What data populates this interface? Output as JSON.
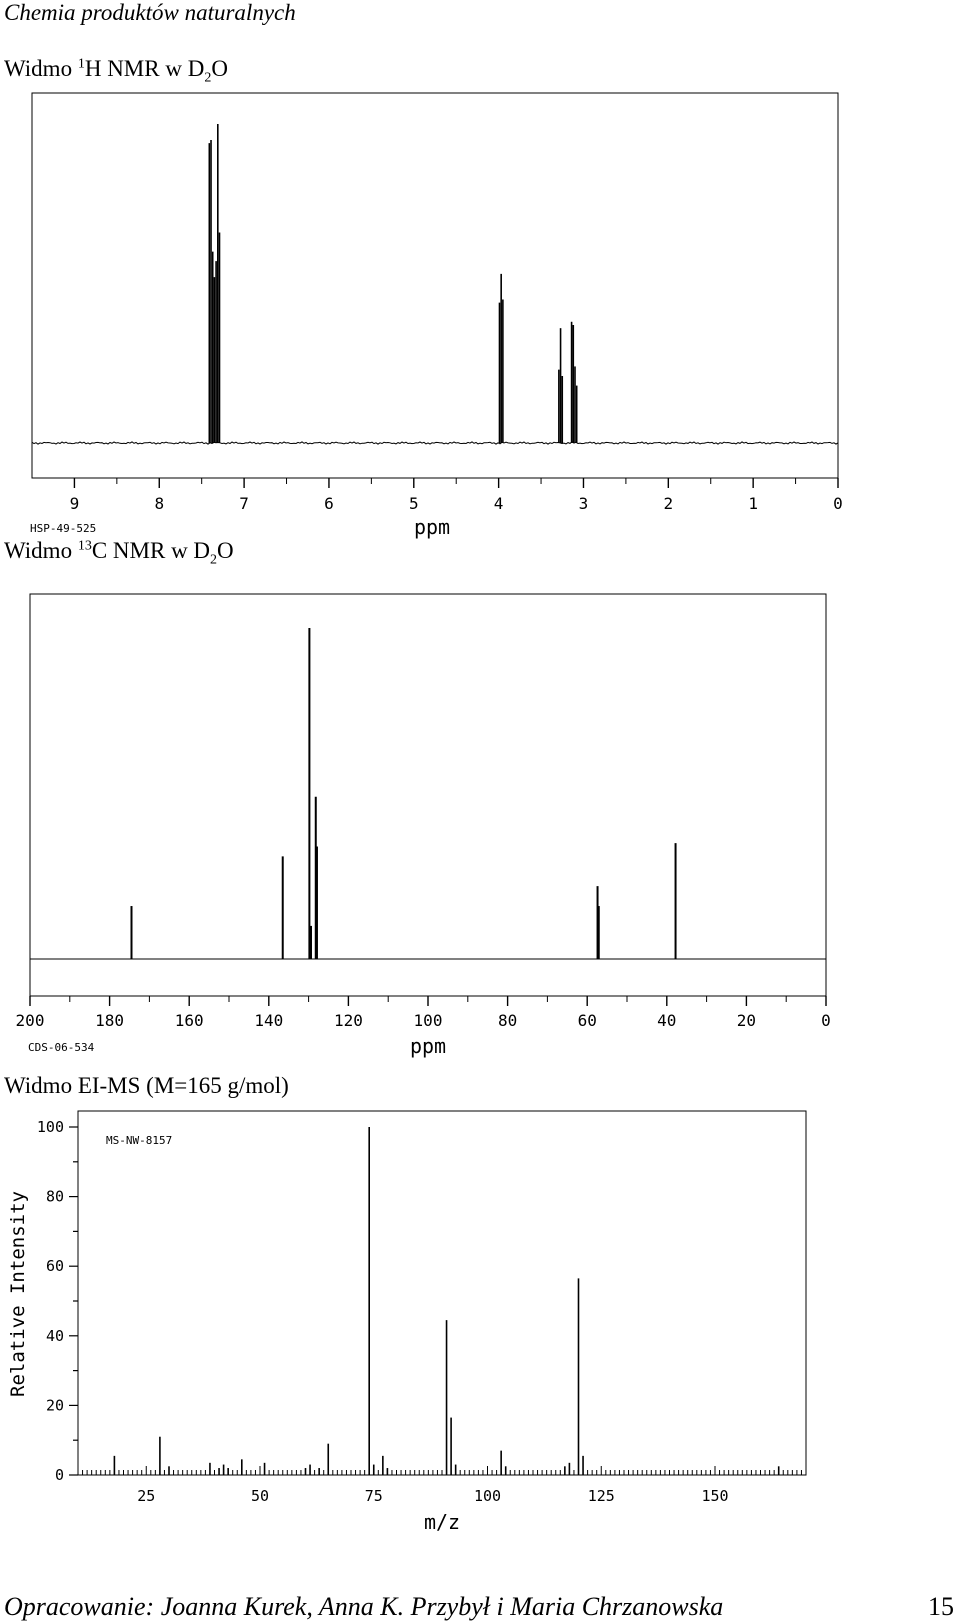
{
  "page": {
    "header": "Chemia produktów naturalnych",
    "footer_authors": "Opracowanie: Joanna Kurek, Anna K. Przybył i Maria Chrzanowska",
    "page_number": "15"
  },
  "headings": {
    "h1": {
      "pre": "Widmo ",
      "sup": "1",
      "mid": "H NMR w D",
      "sub": "2",
      "post": "O"
    },
    "c13": {
      "pre": "Widmo ",
      "sup": "13",
      "mid": "C NMR w D",
      "sub": "2",
      "post": "O"
    },
    "ms": {
      "text": "Widmo EI-MS (M=165 g/mol)"
    }
  },
  "chart_data": [
    {
      "type": "line",
      "code": "HSP-49-525",
      "xlabel": "ppm",
      "xlim": [
        9.5,
        0
      ],
      "xticks": [
        9,
        8,
        7,
        6,
        5,
        4,
        3,
        2,
        1,
        0
      ],
      "peaks": [
        {
          "x": 7.41,
          "y": 0.94
        },
        {
          "x": 7.39,
          "y": 0.95
        },
        {
          "x": 7.37,
          "y": 0.6
        },
        {
          "x": 7.35,
          "y": 0.52
        },
        {
          "x": 7.33,
          "y": 0.57
        },
        {
          "x": 7.31,
          "y": 1.0
        },
        {
          "x": 7.29,
          "y": 0.66
        },
        {
          "x": 3.99,
          "y": 0.44
        },
        {
          "x": 3.97,
          "y": 0.53
        },
        {
          "x": 3.95,
          "y": 0.45
        },
        {
          "x": 3.29,
          "y": 0.23
        },
        {
          "x": 3.27,
          "y": 0.36
        },
        {
          "x": 3.25,
          "y": 0.21
        },
        {
          "x": 3.14,
          "y": 0.38
        },
        {
          "x": 3.12,
          "y": 0.37
        },
        {
          "x": 3.1,
          "y": 0.24
        },
        {
          "x": 3.08,
          "y": 0.18
        }
      ]
    },
    {
      "type": "bar",
      "code": "CDS-06-534",
      "xlabel": "ppm",
      "xlim": [
        200,
        0
      ],
      "xticks": [
        200,
        180,
        160,
        140,
        120,
        100,
        80,
        60,
        40,
        20,
        0
      ],
      "peaks": [
        {
          "x": 174.5,
          "y": 0.16
        },
        {
          "x": 136.5,
          "y": 0.31
        },
        {
          "x": 129.8,
          "y": 1.0
        },
        {
          "x": 129.4,
          "y": 0.1
        },
        {
          "x": 128.2,
          "y": 0.49
        },
        {
          "x": 127.9,
          "y": 0.34
        },
        {
          "x": 57.4,
          "y": 0.22
        },
        {
          "x": 57.1,
          "y": 0.16
        },
        {
          "x": 37.8,
          "y": 0.35
        }
      ]
    },
    {
      "type": "bar",
      "code": "MS-NW-8157",
      "xlabel": "m/z",
      "ylabel": "Relative Intensity",
      "xlim": [
        10,
        170
      ],
      "ylim": [
        0,
        100
      ],
      "xticks": [
        25,
        50,
        75,
        100,
        125,
        150
      ],
      "yticks": [
        0,
        20,
        40,
        60,
        80,
        100
      ],
      "peaks": [
        {
          "x": 18,
          "y": 5.5
        },
        {
          "x": 28,
          "y": 11
        },
        {
          "x": 30,
          "y": 2.5
        },
        {
          "x": 39,
          "y": 3.5
        },
        {
          "x": 41,
          "y": 2
        },
        {
          "x": 42,
          "y": 3
        },
        {
          "x": 43,
          "y": 2
        },
        {
          "x": 46,
          "y": 4.5
        },
        {
          "x": 51,
          "y": 3.5
        },
        {
          "x": 60,
          "y": 2
        },
        {
          "x": 61,
          "y": 3
        },
        {
          "x": 63,
          "y": 2
        },
        {
          "x": 65,
          "y": 9
        },
        {
          "x": 74,
          "y": 100
        },
        {
          "x": 75,
          "y": 3
        },
        {
          "x": 77,
          "y": 5.5
        },
        {
          "x": 78,
          "y": 2
        },
        {
          "x": 91,
          "y": 44.5
        },
        {
          "x": 92,
          "y": 16.5
        },
        {
          "x": 93,
          "y": 3
        },
        {
          "x": 103,
          "y": 7
        },
        {
          "x": 104,
          "y": 2.5
        },
        {
          "x": 117,
          "y": 2.5
        },
        {
          "x": 118,
          "y": 3.5
        },
        {
          "x": 120,
          "y": 56.5
        },
        {
          "x": 121,
          "y": 5.5
        },
        {
          "x": 164,
          "y": 2.5
        }
      ]
    }
  ]
}
